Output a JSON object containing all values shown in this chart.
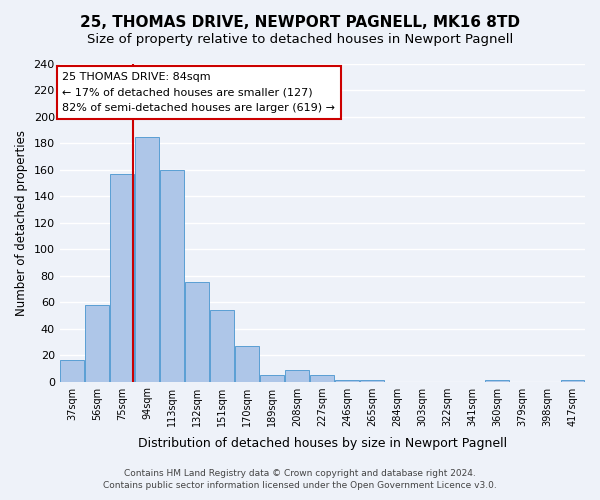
{
  "title": "25, THOMAS DRIVE, NEWPORT PAGNELL, MK16 8TD",
  "subtitle": "Size of property relative to detached houses in Newport Pagnell",
  "xlabel": "Distribution of detached houses by size in Newport Pagnell",
  "ylabel": "Number of detached properties",
  "bar_values": [
    16,
    58,
    157,
    185,
    160,
    75,
    54,
    27,
    5,
    9,
    5,
    1,
    1,
    0,
    0,
    0,
    0,
    1,
    0,
    0,
    1
  ],
  "bar_labels": [
    "37sqm",
    "56sqm",
    "75sqm",
    "94sqm",
    "113sqm",
    "132sqm",
    "151sqm",
    "170sqm",
    "189sqm",
    "208sqm",
    "227sqm",
    "246sqm",
    "265sqm",
    "284sqm",
    "303sqm",
    "322sqm",
    "341sqm",
    "360sqm",
    "379sqm",
    "398sqm",
    "417sqm"
  ],
  "bin_edges": [
    28,
    47,
    66,
    85,
    104,
    123,
    142,
    161,
    180,
    199,
    218,
    237,
    256,
    275,
    294,
    313,
    332,
    351,
    370,
    389,
    408,
    427
  ],
  "bar_color": "#aec6e8",
  "bar_edge_color": "#5a9fd4",
  "vline_x": 84,
  "vline_color": "#cc0000",
  "annotation_title": "25 THOMAS DRIVE: 84sqm",
  "annotation_line1": "← 17% of detached houses are smaller (127)",
  "annotation_line2": "82% of semi-detached houses are larger (619) →",
  "annotation_box_color": "#ffffff",
  "annotation_box_edge": "#cc0000",
  "ylim": [
    0,
    240
  ],
  "yticks": [
    0,
    20,
    40,
    60,
    80,
    100,
    120,
    140,
    160,
    180,
    200,
    220,
    240
  ],
  "footer_line1": "Contains HM Land Registry data © Crown copyright and database right 2024.",
  "footer_line2": "Contains public sector information licensed under the Open Government Licence v3.0.",
  "background_color": "#eef2f9",
  "grid_color": "#ffffff",
  "title_fontsize": 11,
  "subtitle_fontsize": 9.5
}
